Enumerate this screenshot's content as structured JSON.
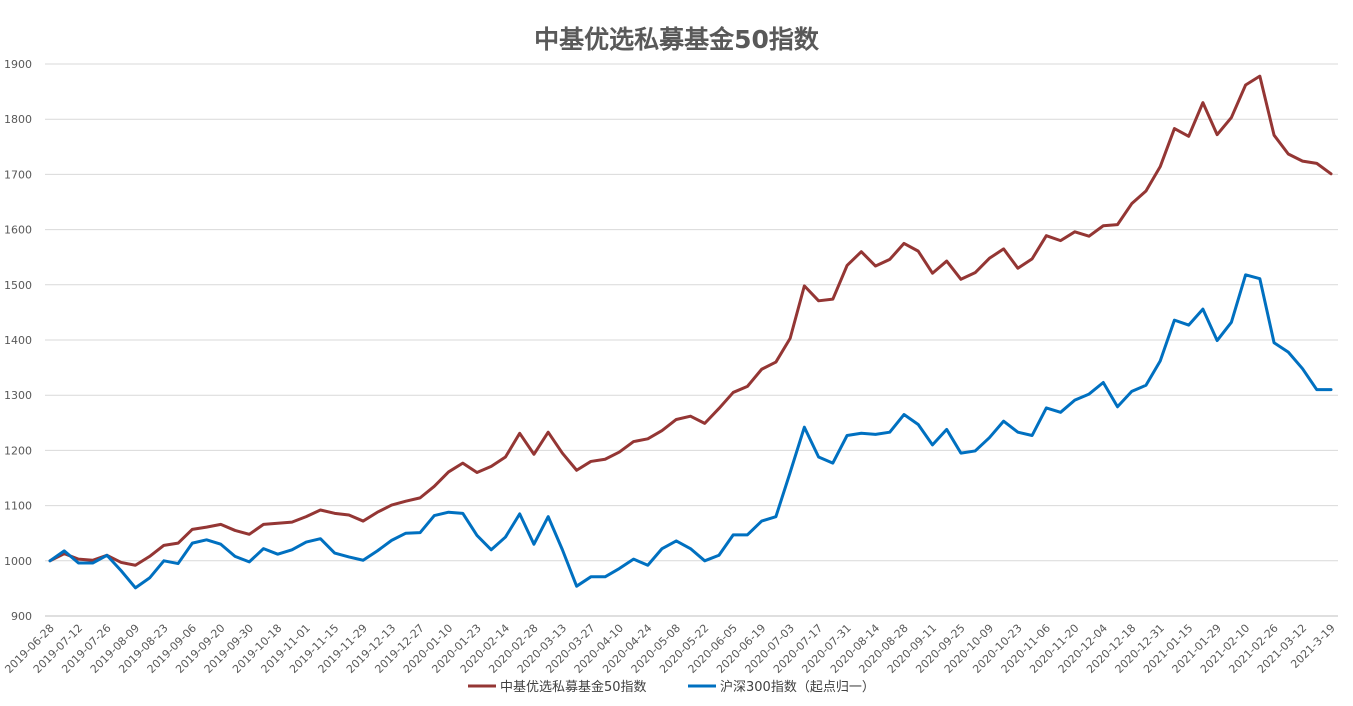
{
  "chart_data": {
    "type": "line",
    "title": "中基优选私募基金50指数",
    "ylim": [
      900,
      1900
    ],
    "yticks": [
      900,
      1000,
      1100,
      1200,
      1300,
      1400,
      1500,
      1600,
      1700,
      1800,
      1900
    ],
    "grid": true,
    "legend": "bottom",
    "x_tick_labels": [
      "2019-06-28",
      "2019-07-12",
      "2019-07-26",
      "2019-08-09",
      "2019-08-23",
      "2019-09-06",
      "2019-09-20",
      "2019-09-30",
      "2019-10-18",
      "2019-11-01",
      "2019-11-15",
      "2019-11-29",
      "2019-12-13",
      "2019-12-27",
      "2020-01-10",
      "2020-01-23",
      "2020-02-14",
      "2020-02-28",
      "2020-03-13",
      "2020-03-27",
      "2020-04-10",
      "2020-04-24",
      "2020-05-08",
      "2020-05-22",
      "2020-06-05",
      "2020-06-19",
      "2020-07-03",
      "2020-07-17",
      "2020-07-31",
      "2020-08-14",
      "2020-08-28",
      "2020-09-11",
      "2020-09-25",
      "2020-10-09",
      "2020-10-23",
      "2020-11-06",
      "2020-11-20",
      "2020-12-04",
      "2020-12-18",
      "2020-12-31",
      "2021-01-15",
      "2021-01-29",
      "2021-02-10",
      "2021-02-26",
      "2021-03-12",
      "2021-3-19"
    ],
    "point_count": 91,
    "series": [
      {
        "name": "中基优选私募基金50指数",
        "color": "#943634",
        "values": [
          1000,
          1013,
          1003,
          1001,
          1010,
          997,
          992,
          1008,
          1028,
          1032,
          1057,
          1061,
          1066,
          1055,
          1048,
          1066,
          1068,
          1070,
          1080,
          1092,
          1086,
          1083,
          1072,
          1088,
          1101,
          1108,
          1114,
          1135,
          1161,
          1177,
          1160,
          1171,
          1188,
          1231,
          1193,
          1233,
          1195,
          1164,
          1180,
          1184,
          1197,
          1216,
          1221,
          1236,
          1256,
          1262,
          1249,
          1276,
          1305,
          1316,
          1347,
          1360,
          1403,
          1498,
          1471,
          1474,
          1535,
          1560,
          1534,
          1546,
          1575,
          1561,
          1521,
          1543,
          1510,
          1522,
          1548,
          1565,
          1530,
          1547,
          1589,
          1580,
          1596,
          1588,
          1607,
          1609,
          1647,
          1670,
          1714,
          1783,
          1769,
          1830,
          1772,
          1803,
          1862,
          1878,
          1771,
          1737,
          1724,
          1720,
          1701
        ]
      },
      {
        "name": "沪深300指数（起点归一）",
        "color": "#0070C0",
        "values": [
          1000,
          1018,
          996,
          996,
          1010,
          982,
          951,
          969,
          1000,
          995,
          1032,
          1038,
          1030,
          1008,
          998,
          1022,
          1012,
          1020,
          1034,
          1040,
          1014,
          1007,
          1001,
          1018,
          1037,
          1050,
          1051,
          1082,
          1088,
          1086,
          1046,
          1020,
          1043,
          1085,
          1030,
          1080,
          1020,
          954,
          971,
          971,
          986,
          1003,
          992,
          1022,
          1036,
          1022,
          1000,
          1010,
          1047,
          1047,
          1072,
          1080,
          1160,
          1242,
          1188,
          1177,
          1227,
          1231,
          1229,
          1233,
          1265,
          1247,
          1210,
          1238,
          1195,
          1199,
          1223,
          1253,
          1233,
          1227,
          1277,
          1269,
          1291,
          1302,
          1323,
          1279,
          1307,
          1318,
          1362,
          1436,
          1427,
          1456,
          1399,
          1432,
          1518,
          1511,
          1395,
          1378,
          1348,
          1310,
          1310
        ]
      }
    ]
  }
}
